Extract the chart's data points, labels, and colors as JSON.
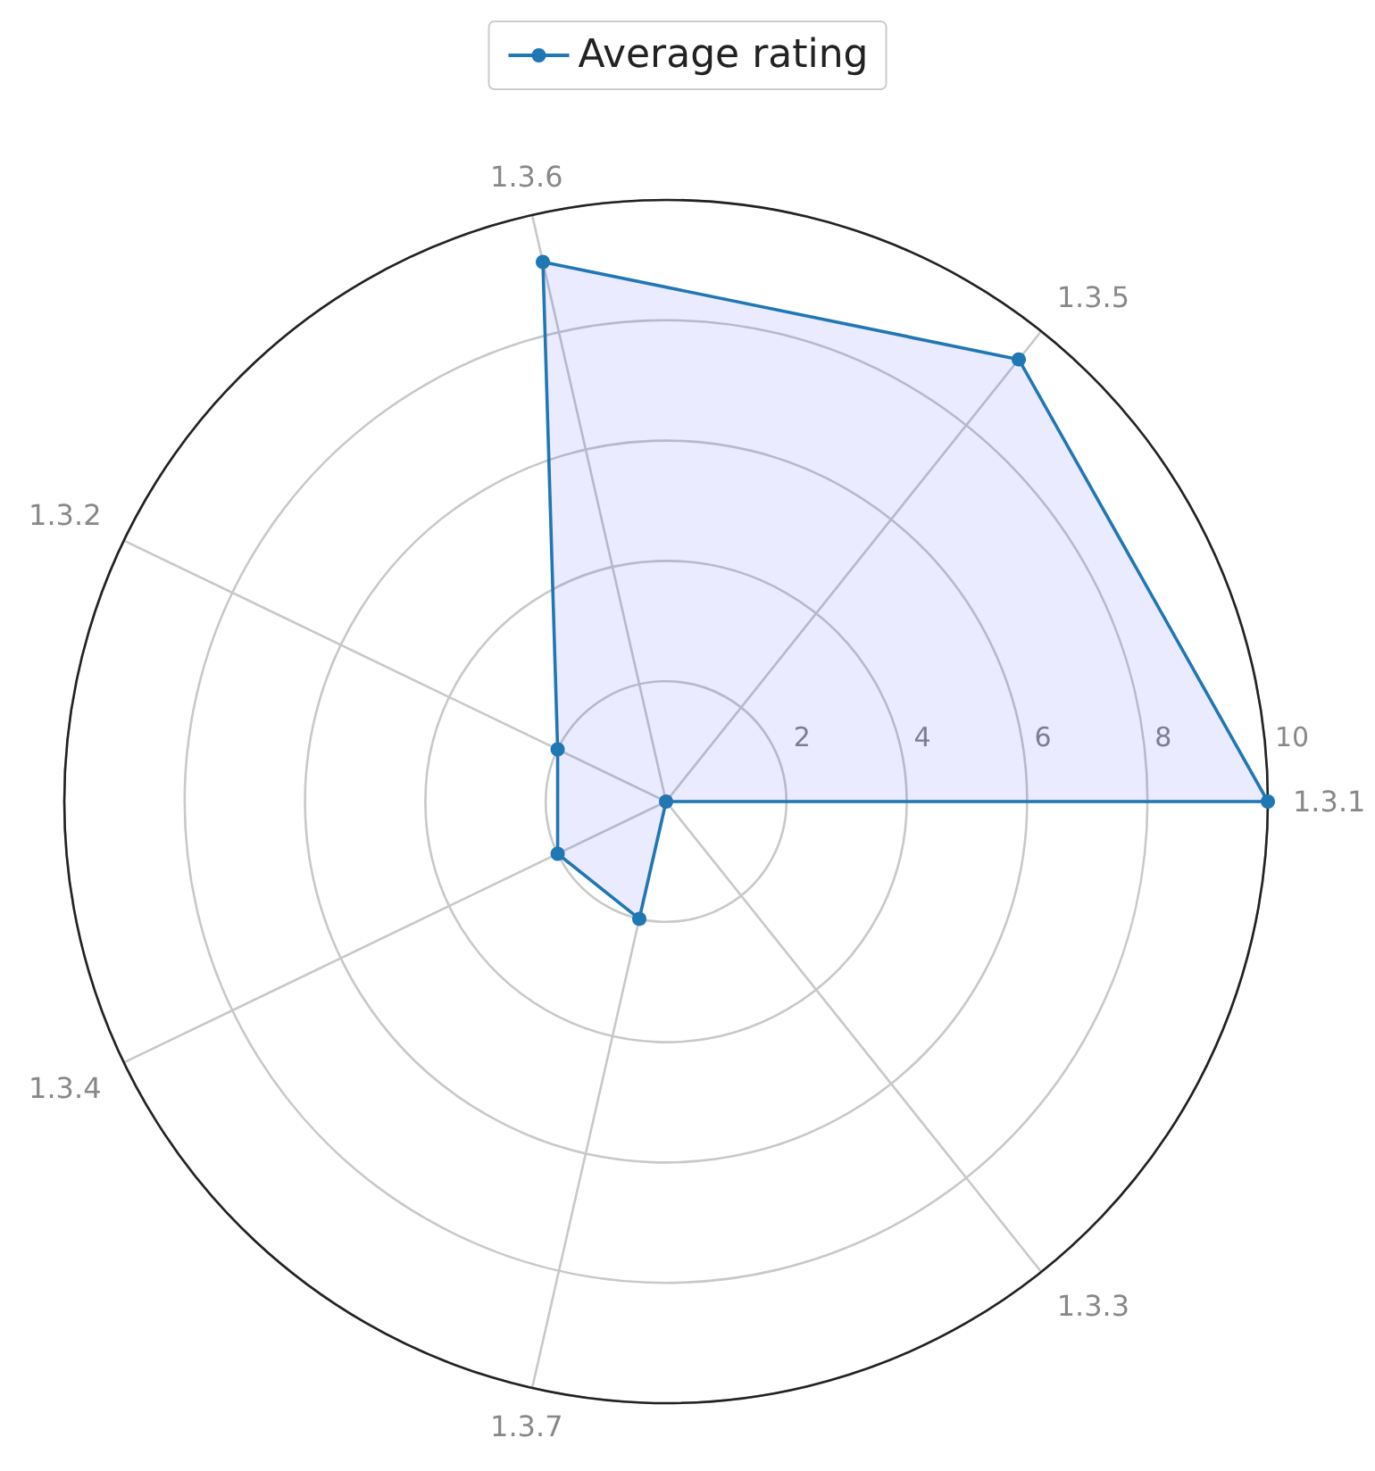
{
  "chart_data": {
    "type": "radar",
    "categories": [
      "1.3.6",
      "1.3.5",
      "1.3.1",
      "1.3.3",
      "1.3.7",
      "1.3.4",
      "1.3.2"
    ],
    "series": [
      {
        "name": "Average rating",
        "color": "#1f77b4",
        "values": [
          9.2,
          9.4,
          10,
          0,
          2,
          2,
          2
        ]
      }
    ],
    "ylim": [
      0,
      10
    ],
    "yticks": [
      2,
      4,
      6,
      8,
      10
    ],
    "grid": true,
    "legend": "top",
    "marker": "circle"
  }
}
